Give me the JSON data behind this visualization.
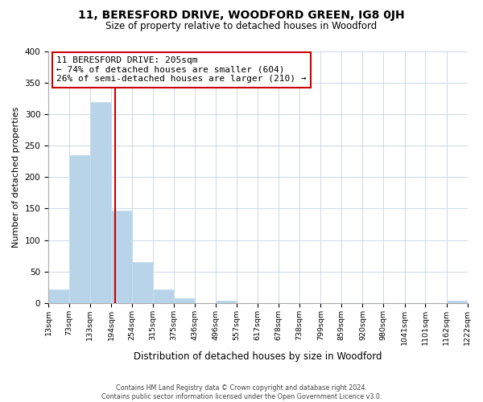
{
  "title": "11, BERESFORD DRIVE, WOODFORD GREEN, IG8 0JH",
  "subtitle": "Size of property relative to detached houses in Woodford",
  "xlabel": "Distribution of detached houses by size in Woodford",
  "ylabel": "Number of detached properties",
  "bin_edges": [
    13,
    73,
    133,
    194,
    254,
    315,
    375,
    436,
    496,
    557,
    617,
    678,
    738,
    799,
    859,
    920,
    980,
    1041,
    1101,
    1162,
    1222
  ],
  "bar_heights": [
    22,
    235,
    320,
    147,
    65,
    21,
    7,
    0,
    3,
    0,
    0,
    0,
    0,
    0,
    0,
    0,
    0,
    0,
    0,
    3
  ],
  "bar_color": "#b8d4e8",
  "bar_edge_color": "#c8ddf0",
  "property_line_x": 205,
  "property_line_color": "#cc0000",
  "annotation_line1": "11 BERESFORD DRIVE: 205sqm",
  "annotation_line2": "← 74% of detached houses are smaller (604)",
  "annotation_line3": "26% of semi-detached houses are larger (210) →",
  "annotation_box_color": "#ffffff",
  "annotation_box_edge": "#cc0000",
  "ylim": [
    0,
    400
  ],
  "yticks": [
    0,
    50,
    100,
    150,
    200,
    250,
    300,
    350,
    400
  ],
  "footer_line1": "Contains HM Land Registry data © Crown copyright and database right 2024.",
  "footer_line2": "Contains public sector information licensed under the Open Government Licence v3.0.",
  "background_color": "#ffffff",
  "grid_color": "#ccd8e8"
}
